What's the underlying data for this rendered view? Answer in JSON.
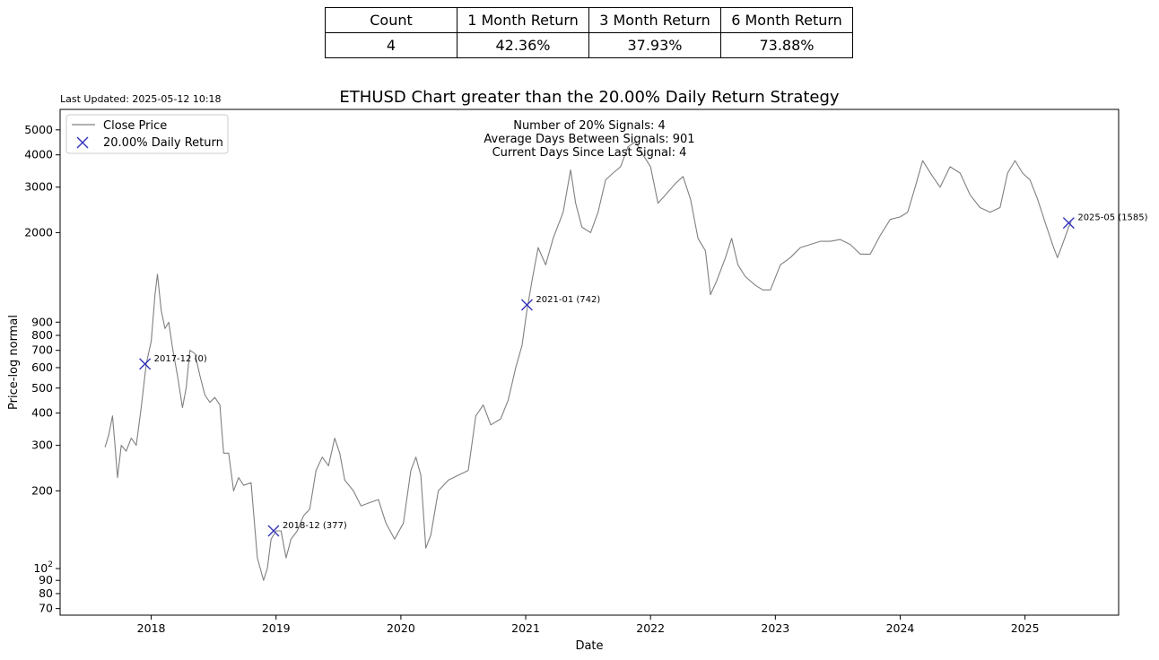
{
  "stats_table": {
    "headers": [
      "Count",
      "1 Month Return",
      "3 Month Return",
      "6 Month Return"
    ],
    "values": [
      "4",
      "42.36%",
      "37.93%",
      "73.88%"
    ]
  },
  "last_updated": "Last Updated: 2025-05-12 10:18",
  "info_lines": [
    "Number of 20% Signals: 4",
    "Average Days Between Signals: 901",
    "Current Days Since Last Signal: 4"
  ],
  "chart_data": {
    "type": "line",
    "title": "ETHUSD Chart greater than the 20.00% Daily Return Strategy",
    "xlabel": "Date",
    "ylabel": "Price-log normal",
    "yscale": "log",
    "xlim": [
      2017.27,
      2025.75
    ],
    "ylim": [
      66,
      6000
    ],
    "grid": false,
    "legend_position": "top-left",
    "x_ticks": [
      "2018",
      "2019",
      "2020",
      "2021",
      "2022",
      "2023",
      "2024",
      "2025"
    ],
    "y_ticks": [
      {
        "value": 70,
        "label": "70"
      },
      {
        "value": 80,
        "label": "80"
      },
      {
        "value": 90,
        "label": "90"
      },
      {
        "value": 100,
        "label": "10",
        "sup": "2"
      },
      {
        "value": 200,
        "label": "200"
      },
      {
        "value": 300,
        "label": "300"
      },
      {
        "value": 400,
        "label": "400"
      },
      {
        "value": 500,
        "label": "500"
      },
      {
        "value": 600,
        "label": "600"
      },
      {
        "value": 700,
        "label": "700"
      },
      {
        "value": 800,
        "label": "800"
      },
      {
        "value": 900,
        "label": "900"
      },
      {
        "value": 2000,
        "label": "2000"
      },
      {
        "value": 3000,
        "label": "3000"
      },
      {
        "value": 4000,
        "label": "4000"
      },
      {
        "value": 5000,
        "label": "5000"
      }
    ],
    "series": [
      {
        "name": "Close Price",
        "color": "#808080",
        "points": [
          [
            2017.63,
            295
          ],
          [
            2017.66,
            330
          ],
          [
            2017.69,
            390
          ],
          [
            2017.71,
            300
          ],
          [
            2017.73,
            225
          ],
          [
            2017.76,
            300
          ],
          [
            2017.8,
            285
          ],
          [
            2017.84,
            320
          ],
          [
            2017.88,
            300
          ],
          [
            2017.92,
            420
          ],
          [
            2017.96,
            620
          ],
          [
            2018.0,
            760
          ],
          [
            2018.03,
            1150
          ],
          [
            2018.05,
            1380
          ],
          [
            2018.08,
            1000
          ],
          [
            2018.11,
            850
          ],
          [
            2018.14,
            900
          ],
          [
            2018.17,
            720
          ],
          [
            2018.21,
            560
          ],
          [
            2018.25,
            420
          ],
          [
            2018.28,
            500
          ],
          [
            2018.31,
            700
          ],
          [
            2018.35,
            680
          ],
          [
            2018.39,
            560
          ],
          [
            2018.43,
            470
          ],
          [
            2018.47,
            440
          ],
          [
            2018.51,
            460
          ],
          [
            2018.55,
            430
          ],
          [
            2018.58,
            280
          ],
          [
            2018.62,
            280
          ],
          [
            2018.66,
            200
          ],
          [
            2018.7,
            225
          ],
          [
            2018.74,
            210
          ],
          [
            2018.8,
            215
          ],
          [
            2018.85,
            110
          ],
          [
            2018.9,
            90
          ],
          [
            2018.93,
            100
          ],
          [
            2018.96,
            130
          ],
          [
            2019.0,
            140
          ],
          [
            2019.04,
            140
          ],
          [
            2019.08,
            110
          ],
          [
            2019.12,
            130
          ],
          [
            2019.17,
            140
          ],
          [
            2019.22,
            160
          ],
          [
            2019.27,
            170
          ],
          [
            2019.32,
            240
          ],
          [
            2019.37,
            270
          ],
          [
            2019.42,
            250
          ],
          [
            2019.47,
            320
          ],
          [
            2019.51,
            280
          ],
          [
            2019.55,
            220
          ],
          [
            2019.62,
            200
          ],
          [
            2019.68,
            175
          ],
          [
            2019.75,
            180
          ],
          [
            2019.82,
            185
          ],
          [
            2019.88,
            150
          ],
          [
            2019.95,
            130
          ],
          [
            2020.02,
            150
          ],
          [
            2020.08,
            240
          ],
          [
            2020.12,
            270
          ],
          [
            2020.16,
            230
          ],
          [
            2020.2,
            120
          ],
          [
            2020.24,
            135
          ],
          [
            2020.3,
            200
          ],
          [
            2020.38,
            220
          ],
          [
            2020.46,
            230
          ],
          [
            2020.54,
            240
          ],
          [
            2020.6,
            390
          ],
          [
            2020.66,
            430
          ],
          [
            2020.72,
            360
          ],
          [
            2020.8,
            380
          ],
          [
            2020.86,
            450
          ],
          [
            2020.92,
            600
          ],
          [
            2020.97,
            730
          ],
          [
            2021.01,
            1000
          ],
          [
            2021.05,
            1300
          ],
          [
            2021.1,
            1750
          ],
          [
            2021.16,
            1500
          ],
          [
            2021.22,
            1900
          ],
          [
            2021.3,
            2400
          ],
          [
            2021.36,
            3500
          ],
          [
            2021.4,
            2600
          ],
          [
            2021.45,
            2100
          ],
          [
            2021.52,
            2000
          ],
          [
            2021.58,
            2400
          ],
          [
            2021.64,
            3200
          ],
          [
            2021.7,
            3400
          ],
          [
            2021.76,
            3600
          ],
          [
            2021.82,
            4300
          ],
          [
            2021.88,
            4500
          ],
          [
            2021.94,
            4000
          ],
          [
            2022.0,
            3600
          ],
          [
            2022.06,
            2600
          ],
          [
            2022.12,
            2800
          ],
          [
            2022.2,
            3100
          ],
          [
            2022.26,
            3300
          ],
          [
            2022.32,
            2700
          ],
          [
            2022.38,
            1900
          ],
          [
            2022.44,
            1700
          ],
          [
            2022.48,
            1150
          ],
          [
            2022.53,
            1300
          ],
          [
            2022.6,
            1600
          ],
          [
            2022.65,
            1900
          ],
          [
            2022.7,
            1500
          ],
          [
            2022.76,
            1350
          ],
          [
            2022.84,
            1250
          ],
          [
            2022.9,
            1200
          ],
          [
            2022.96,
            1200
          ],
          [
            2023.04,
            1500
          ],
          [
            2023.12,
            1600
          ],
          [
            2023.2,
            1750
          ],
          [
            2023.28,
            1800
          ],
          [
            2023.36,
            1850
          ],
          [
            2023.44,
            1850
          ],
          [
            2023.52,
            1880
          ],
          [
            2023.6,
            1800
          ],
          [
            2023.68,
            1650
          ],
          [
            2023.76,
            1650
          ],
          [
            2023.84,
            1950
          ],
          [
            2023.92,
            2250
          ],
          [
            2024.0,
            2300
          ],
          [
            2024.06,
            2400
          ],
          [
            2024.12,
            3000
          ],
          [
            2024.18,
            3800
          ],
          [
            2024.26,
            3300
          ],
          [
            2024.32,
            3000
          ],
          [
            2024.4,
            3600
          ],
          [
            2024.48,
            3400
          ],
          [
            2024.56,
            2800
          ],
          [
            2024.64,
            2500
          ],
          [
            2024.72,
            2400
          ],
          [
            2024.8,
            2500
          ],
          [
            2024.86,
            3400
          ],
          [
            2024.92,
            3800
          ],
          [
            2024.98,
            3400
          ],
          [
            2025.04,
            3200
          ],
          [
            2025.1,
            2700
          ],
          [
            2025.16,
            2200
          ],
          [
            2025.22,
            1800
          ],
          [
            2025.26,
            1600
          ],
          [
            2025.3,
            1800
          ],
          [
            2025.35,
            2100
          ],
          [
            2025.37,
            2200
          ]
        ]
      },
      {
        "name": "20.00% Daily Return",
        "color": "#3333bb",
        "marker": "x",
        "points": [
          {
            "x": 2017.95,
            "y": 620,
            "label": "2017-12 (0)"
          },
          {
            "x": 2018.98,
            "y": 140,
            "label": "2018-12 (377)"
          },
          {
            "x": 2021.01,
            "y": 1050,
            "label": "2021-01 (742)"
          },
          {
            "x": 2025.35,
            "y": 2180,
            "label": "2025-05 (1585)"
          }
        ]
      }
    ]
  }
}
